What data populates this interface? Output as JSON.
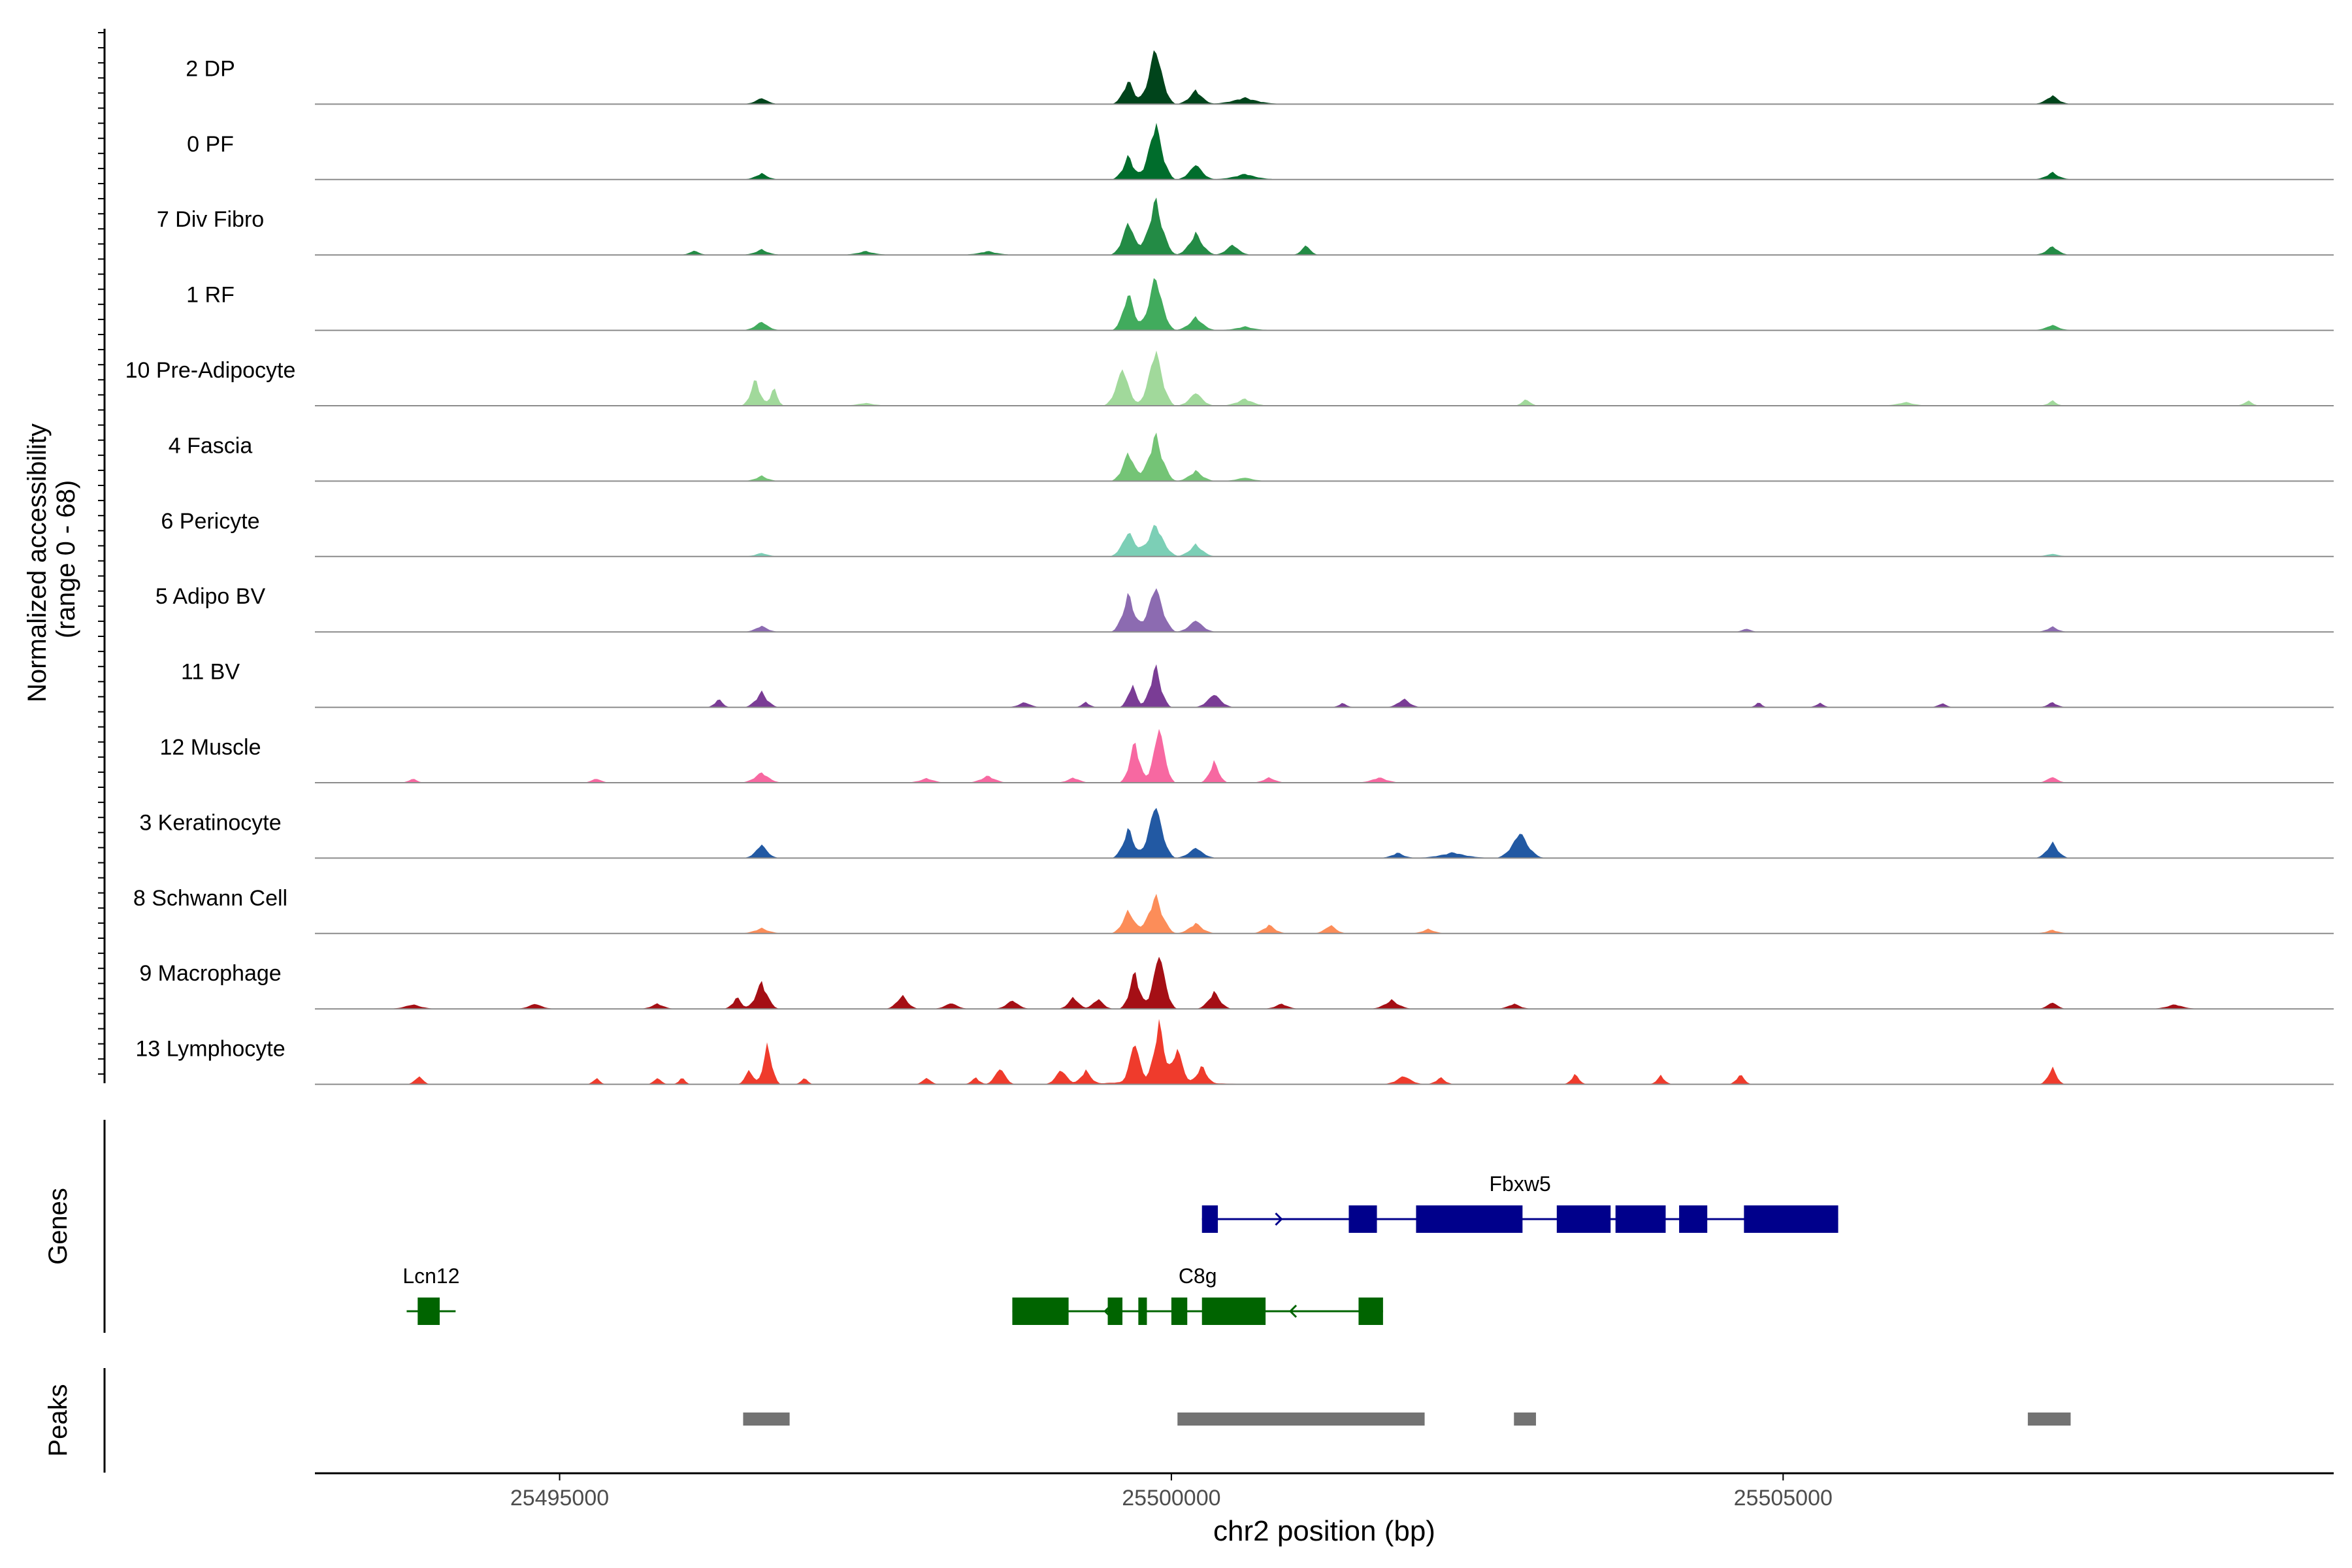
{
  "chart_data": {
    "type": "area",
    "chromosome": "chr2",
    "xlabel": "chr2 position (bp)",
    "xlim": [
      25493000,
      25509500
    ],
    "x_ticks": [
      25495000,
      25500000,
      25505000
    ],
    "x_tick_labels": [
      "25495000",
      "25500000",
      "25505000"
    ],
    "ylabel_line1": "Normalized accessibility",
    "ylabel_line2": "(range 0 - 68)",
    "ylim": [
      0,
      68
    ],
    "genes_label": "Genes",
    "peaks_label": "Peaks",
    "tracks": [
      {
        "name": "2 DP",
        "color": "#00441b",
        "baseline": 1.0,
        "peaks": [
          [
            25499870,
            68,
            170
          ],
          [
            25499650,
            28,
            140
          ],
          [
            25500200,
            16,
            160
          ],
          [
            25496650,
            7,
            140
          ],
          [
            25507200,
            10,
            150
          ],
          [
            25500600,
            7,
            300
          ]
        ]
      },
      {
        "name": "0 PF",
        "color": "#006d2c",
        "baseline": 1.0,
        "peaks": [
          [
            25499870,
            68,
            170
          ],
          [
            25499650,
            28,
            140
          ],
          [
            25500200,
            18,
            160
          ],
          [
            25496650,
            7,
            140
          ],
          [
            25507200,
            8,
            150
          ],
          [
            25500600,
            6,
            260
          ]
        ]
      },
      {
        "name": "7 Div Fibro",
        "color": "#238b45",
        "baseline": 1.0,
        "peaks": [
          [
            25499870,
            65,
            180
          ],
          [
            25499650,
            40,
            150
          ],
          [
            25500200,
            25,
            170
          ],
          [
            25500500,
            12,
            150
          ],
          [
            25501100,
            12,
            100
          ],
          [
            25496650,
            6,
            150
          ],
          [
            25496100,
            5,
            100
          ],
          [
            25507200,
            10,
            140
          ],
          [
            25497500,
            4,
            180
          ],
          [
            25498500,
            4,
            200
          ]
        ]
      },
      {
        "name": "1 RF",
        "color": "#41ab5d",
        "baseline": 1.0,
        "peaks": [
          [
            25499870,
            65,
            170
          ],
          [
            25499650,
            45,
            140
          ],
          [
            25500200,
            15,
            170
          ],
          [
            25496650,
            10,
            150
          ],
          [
            25507200,
            6,
            150
          ],
          [
            25500600,
            4,
            200
          ]
        ]
      },
      {
        "name": "10 Pre-Adipocyte",
        "color": "#a1d99b",
        "baseline": 0.5,
        "peaks": [
          [
            25499870,
            68,
            170
          ],
          [
            25499600,
            45,
            160
          ],
          [
            25500200,
            16,
            160
          ],
          [
            25496600,
            32,
            120
          ],
          [
            25496750,
            22,
            90
          ],
          [
            25500600,
            8,
            200
          ],
          [
            25502900,
            8,
            100
          ],
          [
            25507200,
            6,
            100
          ],
          [
            25508800,
            6,
            100
          ],
          [
            25506000,
            4,
            200
          ],
          [
            25497500,
            3,
            200
          ]
        ]
      },
      {
        "name": "4 Fascia",
        "color": "#74c476",
        "baseline": 0.5,
        "peaks": [
          [
            25499870,
            55,
            180
          ],
          [
            25499650,
            35,
            150
          ],
          [
            25500200,
            12,
            170
          ],
          [
            25496650,
            6,
            150
          ],
          [
            25500600,
            4,
            200
          ]
        ]
      },
      {
        "name": "6 Pericyte",
        "color": "#7ccfb6",
        "baseline": 0.5,
        "peaks": [
          [
            25499870,
            38,
            200
          ],
          [
            25499650,
            30,
            160
          ],
          [
            25500200,
            14,
            170
          ],
          [
            25496650,
            4,
            150
          ],
          [
            25507200,
            3,
            150
          ]
        ]
      },
      {
        "name": "5 Adipo BV",
        "color": "#8c6bb1",
        "baseline": 0.5,
        "peaks": [
          [
            25499870,
            55,
            180
          ],
          [
            25499650,
            45,
            150
          ],
          [
            25500200,
            14,
            170
          ],
          [
            25496650,
            7,
            150
          ],
          [
            25507200,
            6,
            130
          ],
          [
            25504700,
            4,
            100
          ]
        ]
      },
      {
        "name": "11 BV",
        "color": "#7a3c95",
        "baseline": 0.3,
        "peaks": [
          [
            25499870,
            50,
            140
          ],
          [
            25499680,
            28,
            110
          ],
          [
            25500350,
            16,
            170
          ],
          [
            25496650,
            18,
            150
          ],
          [
            25496300,
            10,
            100
          ],
          [
            25501900,
            10,
            150
          ],
          [
            25498800,
            6,
            150
          ],
          [
            25499300,
            6,
            100
          ],
          [
            25501400,
            5,
            100
          ],
          [
            25504800,
            6,
            80
          ],
          [
            25505300,
            5,
            100
          ],
          [
            25506300,
            5,
            100
          ],
          [
            25507200,
            6,
            120
          ]
        ]
      },
      {
        "name": "12 Muscle",
        "color": "#f768a1",
        "baseline": 0.3,
        "peaks": [
          [
            25499900,
            68,
            140
          ],
          [
            25499700,
            50,
            130
          ],
          [
            25500350,
            25,
            120
          ],
          [
            25496650,
            12,
            180
          ],
          [
            25493800,
            5,
            100
          ],
          [
            25495300,
            5,
            120
          ],
          [
            25498500,
            8,
            180
          ],
          [
            25499200,
            6,
            150
          ],
          [
            25501700,
            6,
            200
          ],
          [
            25507200,
            7,
            130
          ],
          [
            25500800,
            6,
            150
          ],
          [
            25498000,
            5,
            180
          ]
        ]
      },
      {
        "name": "3 Keratinocyte",
        "color": "#2259a3",
        "baseline": 1.0,
        "peaks": [
          [
            25499870,
            65,
            170
          ],
          [
            25499650,
            35,
            140
          ],
          [
            25500200,
            12,
            170
          ],
          [
            25496650,
            16,
            140
          ],
          [
            25502850,
            30,
            200
          ],
          [
            25507200,
            18,
            140
          ],
          [
            25501850,
            6,
            140
          ],
          [
            25502300,
            6,
            300
          ]
        ]
      },
      {
        "name": "8 Schwann Cell",
        "color": "#fc8d59",
        "baseline": 0.5,
        "peaks": [
          [
            25499870,
            45,
            180
          ],
          [
            25499650,
            28,
            150
          ],
          [
            25500200,
            12,
            170
          ],
          [
            25500800,
            10,
            150
          ],
          [
            25501300,
            10,
            140
          ],
          [
            25496650,
            6,
            180
          ],
          [
            25502100,
            5,
            150
          ],
          [
            25507200,
            4,
            150
          ]
        ]
      },
      {
        "name": "9 Macrophage",
        "color": "#a50f15",
        "baseline": 0.5,
        "peaks": [
          [
            25499900,
            68,
            150
          ],
          [
            25499700,
            45,
            130
          ],
          [
            25500350,
            20,
            150
          ],
          [
            25496650,
            32,
            150
          ],
          [
            25496450,
            14,
            110
          ],
          [
            25497800,
            16,
            140
          ],
          [
            25499200,
            14,
            130
          ],
          [
            25499400,
            12,
            130
          ],
          [
            25498700,
            10,
            150
          ],
          [
            25501800,
            10,
            180
          ],
          [
            25507200,
            8,
            120
          ],
          [
            25493800,
            5,
            200
          ],
          [
            25494800,
            6,
            160
          ],
          [
            25495800,
            6,
            150
          ],
          [
            25498200,
            7,
            150
          ],
          [
            25502800,
            6,
            150
          ],
          [
            25508200,
            5,
            200
          ],
          [
            25500900,
            6,
            150
          ]
        ]
      },
      {
        "name": "13 Lymphocyte",
        "color": "#ef3b2c",
        "baseline": 0.3,
        "peaks": [
          [
            25499900,
            68,
            130
          ],
          [
            25499700,
            50,
            120
          ],
          [
            25500050,
            40,
            120
          ],
          [
            25500250,
            20,
            120
          ],
          [
            25496700,
            48,
            110
          ],
          [
            25496550,
            18,
            100
          ],
          [
            25498600,
            20,
            130
          ],
          [
            25499100,
            18,
            140
          ],
          [
            25499300,
            16,
            130
          ],
          [
            25493850,
            10,
            100
          ],
          [
            25495300,
            8,
            80
          ],
          [
            25495800,
            8,
            90
          ],
          [
            25496000,
            8,
            80
          ],
          [
            25497000,
            8,
            80
          ],
          [
            25498000,
            8,
            100
          ],
          [
            25498400,
            8,
            100
          ],
          [
            25499900,
            6,
            800
          ],
          [
            25501900,
            10,
            180
          ],
          [
            25502200,
            8,
            120
          ],
          [
            25503300,
            12,
            100
          ],
          [
            25504650,
            12,
            100
          ],
          [
            25504000,
            10,
            100
          ],
          [
            25507200,
            20,
            110
          ]
        ]
      }
    ],
    "genes": [
      {
        "name": "Fbxw5",
        "strand": "+",
        "row": 1,
        "color": "#00008b",
        "start": 25500250,
        "end": 25505450,
        "exons": [
          [
            25500250,
            25500380
          ],
          [
            25501450,
            25501680
          ],
          [
            25502000,
            25502870
          ],
          [
            25503150,
            25503590
          ],
          [
            25503630,
            25504040
          ],
          [
            25504150,
            25504380
          ],
          [
            25504680,
            25505450
          ]
        ]
      },
      {
        "name": "C8g",
        "strand": "-",
        "row": 2,
        "color": "#006400",
        "start": 25498700,
        "end": 25501730,
        "exons": [
          [
            25498700,
            25499160
          ],
          [
            25499480,
            25499600
          ],
          [
            25499730,
            25499800
          ],
          [
            25500000,
            25500130
          ],
          [
            25500250,
            25500770
          ],
          [
            25501530,
            25501730
          ]
        ]
      },
      {
        "name": "Lcn12",
        "strand": "-",
        "row": 2,
        "color": "#006400",
        "start": 25493750,
        "end": 25494150,
        "exons": [
          [
            25493840,
            25494020
          ]
        ]
      }
    ],
    "peak_regions": [
      [
        25496500,
        25496880
      ],
      [
        25500050,
        25502070
      ],
      [
        25502800,
        25502980
      ],
      [
        25507000,
        25507350
      ]
    ],
    "peak_color": "#737373",
    "axis_color": "#000000",
    "tick_label_color": "#4d4d4d"
  }
}
